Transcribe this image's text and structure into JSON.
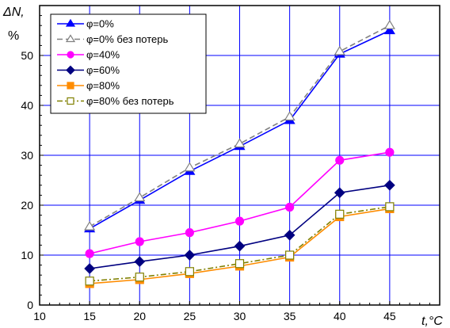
{
  "chart_data": {
    "type": "line",
    "title": "",
    "xlabel": "t,°C",
    "ylabel": "ΔN,",
    "ylabel_unit": "%",
    "xlim": [
      10,
      50
    ],
    "ylim": [
      0,
      60
    ],
    "x_ticks": [
      10,
      15,
      20,
      25,
      30,
      35,
      40,
      45
    ],
    "y_ticks": [
      0,
      10,
      20,
      30,
      40,
      50
    ],
    "grid": true,
    "legend_position": "top-left",
    "x": [
      15,
      20,
      25,
      30,
      35,
      40,
      45
    ],
    "series": [
      {
        "name": "φ=0%",
        "values": [
          15.3,
          21.0,
          26.8,
          31.8,
          37.0,
          50.3,
          55.0
        ],
        "color": "#0000ff",
        "dash": "solid",
        "marker": "triangle",
        "fill": "#0000ff"
      },
      {
        "name": "φ=0%  без потерь",
        "values": [
          15.7,
          21.5,
          27.5,
          32.3,
          37.7,
          50.8,
          56.0
        ],
        "color": "#808080",
        "dash": "dash",
        "marker": "triangle",
        "fill": "#ffffff"
      },
      {
        "name": "φ=40%",
        "values": [
          10.3,
          12.7,
          14.5,
          16.8,
          19.6,
          29.0,
          30.6
        ],
        "color": "#ff00ff",
        "dash": "solid",
        "marker": "circle",
        "fill": "#ff00ff"
      },
      {
        "name": "φ=60%",
        "values": [
          7.3,
          8.7,
          10.0,
          11.8,
          14.0,
          22.5,
          24.0
        ],
        "color": "#000080",
        "dash": "solid",
        "marker": "diamond",
        "fill": "#000080"
      },
      {
        "name": "φ=80%",
        "values": [
          4.3,
          5.1,
          6.3,
          7.8,
          9.6,
          17.7,
          19.3
        ],
        "color": "#ff8c00",
        "dash": "solid",
        "marker": "square",
        "fill": "#ff8c00"
      },
      {
        "name": "φ=80% без потерь",
        "values": [
          4.8,
          5.6,
          6.7,
          8.3,
          10.0,
          18.2,
          19.7
        ],
        "color": "#808000",
        "dash": "dashdot",
        "marker": "square",
        "fill": "#ffffff"
      }
    ]
  }
}
